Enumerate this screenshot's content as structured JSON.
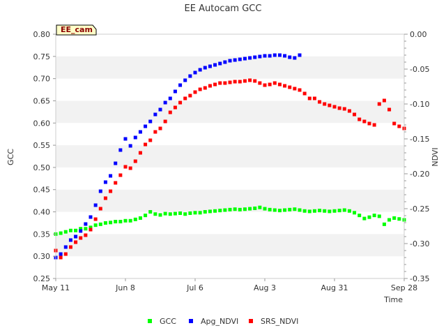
{
  "chart_data": {
    "type": "scatter",
    "title": "EE Autocam GCC",
    "badge": "EE_cam",
    "xlabel": "Time",
    "ylabel": "GCC",
    "y2label": "NDVI",
    "x_range": [
      "2024-05-11",
      "2024-09-28"
    ],
    "x_ticks": [
      {
        "date": "2024-05-11",
        "label": "May 11"
      },
      {
        "date": "2024-06-08",
        "label": "Jun 8"
      },
      {
        "date": "2024-07-06",
        "label": "Jul 6"
      },
      {
        "date": "2024-08-03",
        "label": "Aug 3"
      },
      {
        "date": "2024-08-31",
        "label": "Aug 31"
      },
      {
        "date": "2024-09-28",
        "label": "Sep 28"
      }
    ],
    "ylim": [
      0.25,
      0.8
    ],
    "y_ticks": [
      "0.25",
      "0.30",
      "0.35",
      "0.40",
      "0.45",
      "0.50",
      "0.55",
      "0.60",
      "0.65",
      "0.70",
      "0.75",
      "0.80"
    ],
    "y2lim": [
      -0.35,
      0.0
    ],
    "y2_ticks": [
      "-0.35",
      "-0.30",
      "-0.25",
      "-0.20",
      "-0.15",
      "-0.10",
      "-0.05",
      "0.00"
    ],
    "grid": "horizontal bands",
    "legend_position": "bottom",
    "series": [
      {
        "name": "GCC",
        "axis": "left",
        "color": "#00ff00",
        "points": [
          [
            "2024-05-11",
            0.35
          ],
          [
            "2024-05-13",
            0.352
          ],
          [
            "2024-05-15",
            0.355
          ],
          [
            "2024-05-17",
            0.358
          ],
          [
            "2024-05-19",
            0.358
          ],
          [
            "2024-05-21",
            0.362
          ],
          [
            "2024-05-23",
            0.362
          ],
          [
            "2024-05-25",
            0.365
          ],
          [
            "2024-05-27",
            0.37
          ],
          [
            "2024-05-29",
            0.372
          ],
          [
            "2024-05-31",
            0.375
          ],
          [
            "2024-06-02",
            0.376
          ],
          [
            "2024-06-04",
            0.378
          ],
          [
            "2024-06-06",
            0.378
          ],
          [
            "2024-06-08",
            0.38
          ],
          [
            "2024-06-10",
            0.38
          ],
          [
            "2024-06-12",
            0.383
          ],
          [
            "2024-06-14",
            0.386
          ],
          [
            "2024-06-16",
            0.392
          ],
          [
            "2024-06-18",
            0.4
          ],
          [
            "2024-06-20",
            0.395
          ],
          [
            "2024-06-22",
            0.393
          ],
          [
            "2024-06-24",
            0.396
          ],
          [
            "2024-06-26",
            0.395
          ],
          [
            "2024-06-28",
            0.396
          ],
          [
            "2024-06-30",
            0.397
          ],
          [
            "2024-07-02",
            0.395
          ],
          [
            "2024-07-04",
            0.397
          ],
          [
            "2024-07-06",
            0.398
          ],
          [
            "2024-07-08",
            0.398
          ],
          [
            "2024-07-10",
            0.4
          ],
          [
            "2024-07-12",
            0.401
          ],
          [
            "2024-07-14",
            0.402
          ],
          [
            "2024-07-16",
            0.403
          ],
          [
            "2024-07-18",
            0.404
          ],
          [
            "2024-07-20",
            0.405
          ],
          [
            "2024-07-22",
            0.406
          ],
          [
            "2024-07-24",
            0.405
          ],
          [
            "2024-07-26",
            0.406
          ],
          [
            "2024-07-28",
            0.407
          ],
          [
            "2024-07-30",
            0.408
          ],
          [
            "2024-08-01",
            0.41
          ],
          [
            "2024-08-03",
            0.407
          ],
          [
            "2024-08-05",
            0.405
          ],
          [
            "2024-08-07",
            0.404
          ],
          [
            "2024-08-09",
            0.403
          ],
          [
            "2024-08-11",
            0.404
          ],
          [
            "2024-08-13",
            0.405
          ],
          [
            "2024-08-15",
            0.406
          ],
          [
            "2024-08-17",
            0.404
          ],
          [
            "2024-08-19",
            0.402
          ],
          [
            "2024-08-21",
            0.401
          ],
          [
            "2024-08-23",
            0.402
          ],
          [
            "2024-08-25",
            0.403
          ],
          [
            "2024-08-27",
            0.402
          ],
          [
            "2024-08-29",
            0.401
          ],
          [
            "2024-08-31",
            0.402
          ],
          [
            "2024-09-02",
            0.403
          ],
          [
            "2024-09-04",
            0.404
          ],
          [
            "2024-09-06",
            0.402
          ],
          [
            "2024-09-08",
            0.398
          ],
          [
            "2024-09-10",
            0.392
          ],
          [
            "2024-09-12",
            0.385
          ],
          [
            "2024-09-14",
            0.388
          ],
          [
            "2024-09-16",
            0.392
          ],
          [
            "2024-09-18",
            0.39
          ],
          [
            "2024-09-20",
            0.372
          ],
          [
            "2024-09-22",
            0.382
          ],
          [
            "2024-09-24",
            0.386
          ],
          [
            "2024-09-26",
            0.384
          ],
          [
            "2024-09-28",
            0.382
          ]
        ]
      },
      {
        "name": "Apg_NDVI",
        "axis": "right",
        "color": "#0000ff",
        "points": [
          [
            "2024-05-11",
            -0.32
          ],
          [
            "2024-05-13",
            -0.315
          ],
          [
            "2024-05-15",
            -0.305
          ],
          [
            "2024-05-17",
            -0.295
          ],
          [
            "2024-05-19",
            -0.29
          ],
          [
            "2024-05-21",
            -0.282
          ],
          [
            "2024-05-23",
            -0.272
          ],
          [
            "2024-05-25",
            -0.262
          ],
          [
            "2024-05-27",
            -0.245
          ],
          [
            "2024-05-29",
            -0.225
          ],
          [
            "2024-05-31",
            -0.212
          ],
          [
            "2024-06-02",
            -0.203
          ],
          [
            "2024-06-04",
            -0.185
          ],
          [
            "2024-06-06",
            -0.166
          ],
          [
            "2024-06-08",
            -0.15
          ],
          [
            "2024-06-10",
            -0.16
          ],
          [
            "2024-06-12",
            -0.148
          ],
          [
            "2024-06-14",
            -0.14
          ],
          [
            "2024-06-16",
            -0.132
          ],
          [
            "2024-06-18",
            -0.125
          ],
          [
            "2024-06-20",
            -0.115
          ],
          [
            "2024-06-22",
            -0.108
          ],
          [
            "2024-06-24",
            -0.098
          ],
          [
            "2024-06-26",
            -0.092
          ],
          [
            "2024-06-28",
            -0.082
          ],
          [
            "2024-06-30",
            -0.073
          ],
          [
            "2024-07-02",
            -0.066
          ],
          [
            "2024-07-04",
            -0.06
          ],
          [
            "2024-07-06",
            -0.055
          ],
          [
            "2024-07-08",
            -0.051
          ],
          [
            "2024-07-10",
            -0.048
          ],
          [
            "2024-07-12",
            -0.046
          ],
          [
            "2024-07-14",
            -0.044
          ],
          [
            "2024-07-16",
            -0.042
          ],
          [
            "2024-07-18",
            -0.04
          ],
          [
            "2024-07-20",
            -0.038
          ],
          [
            "2024-07-22",
            -0.037
          ],
          [
            "2024-07-24",
            -0.036
          ],
          [
            "2024-07-26",
            -0.035
          ],
          [
            "2024-07-28",
            -0.034
          ],
          [
            "2024-07-30",
            -0.033
          ],
          [
            "2024-08-01",
            -0.032
          ],
          [
            "2024-08-03",
            -0.031
          ],
          [
            "2024-08-05",
            -0.031
          ],
          [
            "2024-08-07",
            -0.03
          ],
          [
            "2024-08-09",
            -0.03
          ],
          [
            "2024-08-11",
            -0.031
          ],
          [
            "2024-08-13",
            -0.033
          ],
          [
            "2024-08-15",
            -0.034
          ],
          [
            "2024-08-17",
            -0.03
          ]
        ]
      },
      {
        "name": "SRS_NDVI",
        "axis": "right",
        "color": "#ff0000",
        "points": [
          [
            "2024-05-11",
            -0.31
          ],
          [
            "2024-05-13",
            -0.32
          ],
          [
            "2024-05-15",
            -0.315
          ],
          [
            "2024-05-17",
            -0.305
          ],
          [
            "2024-05-19",
            -0.298
          ],
          [
            "2024-05-21",
            -0.292
          ],
          [
            "2024-05-23",
            -0.288
          ],
          [
            "2024-05-25",
            -0.28
          ],
          [
            "2024-05-27",
            -0.265
          ],
          [
            "2024-05-29",
            -0.25
          ],
          [
            "2024-05-31",
            -0.235
          ],
          [
            "2024-06-02",
            -0.225
          ],
          [
            "2024-06-04",
            -0.213
          ],
          [
            "2024-06-06",
            -0.202
          ],
          [
            "2024-06-08",
            -0.19
          ],
          [
            "2024-06-10",
            -0.192
          ],
          [
            "2024-06-12",
            -0.182
          ],
          [
            "2024-06-14",
            -0.17
          ],
          [
            "2024-06-16",
            -0.158
          ],
          [
            "2024-06-18",
            -0.152
          ],
          [
            "2024-06-20",
            -0.14
          ],
          [
            "2024-06-22",
            -0.135
          ],
          [
            "2024-06-24",
            -0.125
          ],
          [
            "2024-06-26",
            -0.112
          ],
          [
            "2024-06-28",
            -0.105
          ],
          [
            "2024-06-30",
            -0.098
          ],
          [
            "2024-07-02",
            -0.092
          ],
          [
            "2024-07-04",
            -0.088
          ],
          [
            "2024-07-06",
            -0.083
          ],
          [
            "2024-07-08",
            -0.079
          ],
          [
            "2024-07-10",
            -0.077
          ],
          [
            "2024-07-12",
            -0.074
          ],
          [
            "2024-07-14",
            -0.072
          ],
          [
            "2024-07-16",
            -0.07
          ],
          [
            "2024-07-18",
            -0.07
          ],
          [
            "2024-07-20",
            -0.069
          ],
          [
            "2024-07-22",
            -0.068
          ],
          [
            "2024-07-24",
            -0.068
          ],
          [
            "2024-07-26",
            -0.067
          ],
          [
            "2024-07-28",
            -0.066
          ],
          [
            "2024-07-30",
            -0.067
          ],
          [
            "2024-08-01",
            -0.07
          ],
          [
            "2024-08-03",
            -0.073
          ],
          [
            "2024-08-05",
            -0.072
          ],
          [
            "2024-08-07",
            -0.07
          ],
          [
            "2024-08-09",
            -0.072
          ],
          [
            "2024-08-11",
            -0.074
          ],
          [
            "2024-08-13",
            -0.076
          ],
          [
            "2024-08-15",
            -0.078
          ],
          [
            "2024-08-17",
            -0.08
          ],
          [
            "2024-08-19",
            -0.085
          ],
          [
            "2024-08-21",
            -0.092
          ],
          [
            "2024-08-23",
            -0.092
          ],
          [
            "2024-08-25",
            -0.097
          ],
          [
            "2024-08-27",
            -0.1
          ],
          [
            "2024-08-29",
            -0.102
          ],
          [
            "2024-08-31",
            -0.104
          ],
          [
            "2024-09-02",
            -0.106
          ],
          [
            "2024-09-04",
            -0.107
          ],
          [
            "2024-09-06",
            -0.11
          ],
          [
            "2024-09-08",
            -0.115
          ],
          [
            "2024-09-10",
            -0.122
          ],
          [
            "2024-09-12",
            -0.125
          ],
          [
            "2024-09-14",
            -0.128
          ],
          [
            "2024-09-16",
            -0.13
          ],
          [
            "2024-09-18",
            -0.1
          ],
          [
            "2024-09-20",
            -0.095
          ],
          [
            "2024-09-22",
            -0.108
          ],
          [
            "2024-09-24",
            -0.128
          ],
          [
            "2024-09-26",
            -0.132
          ],
          [
            "2024-09-28",
            -0.135
          ]
        ]
      }
    ]
  }
}
